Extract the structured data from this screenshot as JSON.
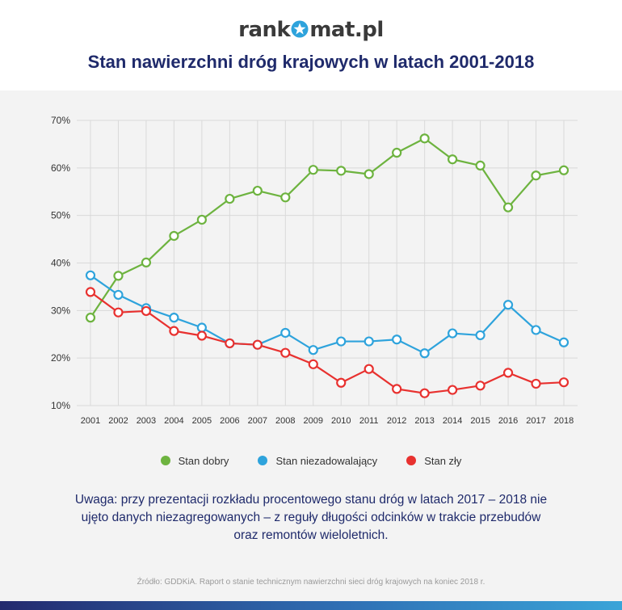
{
  "brand": {
    "logo_left": "rank",
    "logo_right": "mat.pl"
  },
  "title": "Stan nawierzchni dróg krajowych w latach 2001-2018",
  "legend": [
    {
      "label": "Stan dobry",
      "color": "#6db33f"
    },
    {
      "label": "Stan niezadowalający",
      "color": "#2ea3dc"
    },
    {
      "label": "Stan zły",
      "color": "#e8312f"
    }
  ],
  "note": "Uwaga: przy prezentacji rozkładu procentowego stanu dróg w latach 2017 – 2018 nie ujęto danych niezagregowanych – z reguły długości odcinków w trakcie przebudów oraz remontów wieloletnich.",
  "source": "Źródło: GDDKiA. Raport o stanie technicznym nawierzchni sieci dróg krajowych na koniec 2018 r.",
  "colors": {
    "title": "#1f2a6b",
    "panel": "#f3f3f3",
    "grid": "#d9d9d9"
  },
  "chart_data": {
    "type": "line",
    "x": [
      "2001",
      "2002",
      "2003",
      "2004",
      "2005",
      "2006",
      "2007",
      "2008",
      "2009",
      "2010",
      "2011",
      "2012",
      "2013",
      "2014",
      "2015",
      "2016",
      "2017",
      "2018"
    ],
    "ylim": [
      10,
      70
    ],
    "yticks": [
      "10%",
      "20%",
      "30%",
      "40%",
      "50%",
      "60%",
      "70%"
    ],
    "grid": true,
    "legend_position": "bottom",
    "series": [
      {
        "name": "Stan dobry",
        "color": "#6db33f",
        "values": [
          28.5,
          37.3,
          40.1,
          45.7,
          49.1,
          53.5,
          55.2,
          53.8,
          59.6,
          59.4,
          58.7,
          63.2,
          66.2,
          61.8,
          60.5,
          51.7,
          58.4,
          59.5
        ]
      },
      {
        "name": "Stan niezadowalający",
        "color": "#2ea3dc",
        "values": [
          37.4,
          33.3,
          30.5,
          28.5,
          26.4,
          23.1,
          22.8,
          25.3,
          21.7,
          23.5,
          23.5,
          23.9,
          21.0,
          25.2,
          24.8,
          31.2,
          25.9,
          23.3
        ]
      },
      {
        "name": "Stan zły",
        "color": "#e8312f",
        "values": [
          33.9,
          29.6,
          29.9,
          25.7,
          24.7,
          23.1,
          22.8,
          21.1,
          18.7,
          14.8,
          17.7,
          13.5,
          12.6,
          13.3,
          14.2,
          16.9,
          14.6,
          14.9
        ]
      }
    ]
  }
}
